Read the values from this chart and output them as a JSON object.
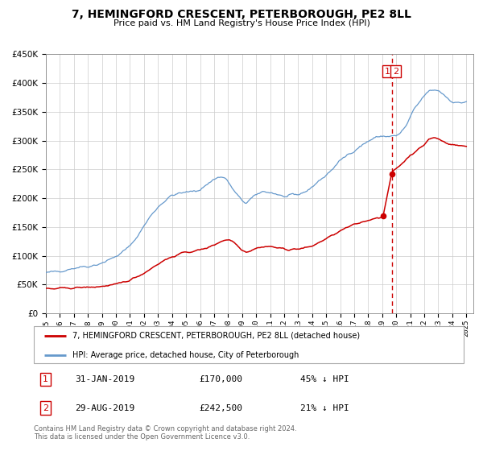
{
  "title": "7, HEMINGFORD CRESCENT, PETERBOROUGH, PE2 8LL",
  "subtitle": "Price paid vs. HM Land Registry's House Price Index (HPI)",
  "legend_line1": "7, HEMINGFORD CRESCENT, PETERBOROUGH, PE2 8LL (detached house)",
  "legend_line2": "HPI: Average price, detached house, City of Peterborough",
  "annotation1_label": "1",
  "annotation1_date": "31-JAN-2019",
  "annotation1_price": "£170,000",
  "annotation1_pct": "45% ↓ HPI",
  "annotation2_label": "2",
  "annotation2_date": "29-AUG-2019",
  "annotation2_price": "£242,500",
  "annotation2_pct": "21% ↓ HPI",
  "footer": "Contains HM Land Registry data © Crown copyright and database right 2024.\nThis data is licensed under the Open Government Licence v3.0.",
  "red_line_color": "#cc0000",
  "blue_line_color": "#6699cc",
  "vline_color": "#cc0000",
  "grid_color": "#cccccc",
  "ylim": [
    0,
    450000
  ],
  "xlim_start": 1995.0,
  "xlim_end": 2025.5,
  "vline_x": 2019.67,
  "point1_x": 2019.08,
  "point1_y": 170000,
  "point2_x": 2019.67,
  "point2_y": 242500,
  "blue_keypoints": [
    [
      1995.0,
      70000
    ],
    [
      1995.5,
      72000
    ],
    [
      1996.0,
      74000
    ],
    [
      1996.5,
      76000
    ],
    [
      1997.0,
      79000
    ],
    [
      1997.5,
      81000
    ],
    [
      1998.0,
      82000
    ],
    [
      1998.5,
      84000
    ],
    [
      1999.0,
      88000
    ],
    [
      1999.5,
      93000
    ],
    [
      2000.0,
      99000
    ],
    [
      2000.5,
      107000
    ],
    [
      2001.0,
      117000
    ],
    [
      2001.5,
      133000
    ],
    [
      2002.0,
      152000
    ],
    [
      2002.5,
      170000
    ],
    [
      2003.0,
      185000
    ],
    [
      2003.5,
      196000
    ],
    [
      2004.0,
      205000
    ],
    [
      2004.5,
      208000
    ],
    [
      2005.0,
      210000
    ],
    [
      2005.5,
      212000
    ],
    [
      2006.0,
      215000
    ],
    [
      2006.5,
      224000
    ],
    [
      2007.0,
      233000
    ],
    [
      2007.3,
      237000
    ],
    [
      2007.8,
      235000
    ],
    [
      2008.0,
      228000
    ],
    [
      2008.5,
      210000
    ],
    [
      2009.0,
      195000
    ],
    [
      2009.3,
      192000
    ],
    [
      2009.6,
      198000
    ],
    [
      2010.0,
      205000
    ],
    [
      2010.3,
      210000
    ],
    [
      2010.6,
      212000
    ],
    [
      2011.0,
      210000
    ],
    [
      2011.5,
      207000
    ],
    [
      2012.0,
      202000
    ],
    [
      2012.5,
      204000
    ],
    [
      2013.0,
      206000
    ],
    [
      2013.5,
      211000
    ],
    [
      2014.0,
      220000
    ],
    [
      2014.5,
      230000
    ],
    [
      2015.0,
      240000
    ],
    [
      2015.5,
      252000
    ],
    [
      2016.0,
      265000
    ],
    [
      2016.5,
      275000
    ],
    [
      2017.0,
      283000
    ],
    [
      2017.5,
      291000
    ],
    [
      2018.0,
      299000
    ],
    [
      2018.5,
      305000
    ],
    [
      2019.0,
      308000
    ],
    [
      2019.5,
      307000
    ],
    [
      2020.0,
      308000
    ],
    [
      2020.3,
      313000
    ],
    [
      2020.7,
      325000
    ],
    [
      2021.0,
      340000
    ],
    [
      2021.3,
      355000
    ],
    [
      2021.7,
      368000
    ],
    [
      2022.0,
      378000
    ],
    [
      2022.3,
      385000
    ],
    [
      2022.7,
      388000
    ],
    [
      2023.0,
      387000
    ],
    [
      2023.3,
      382000
    ],
    [
      2023.7,
      373000
    ],
    [
      2024.0,
      368000
    ],
    [
      2024.3,
      365000
    ],
    [
      2024.7,
      366000
    ],
    [
      2025.0,
      368000
    ]
  ],
  "red_keypoints": [
    [
      1995.0,
      43000
    ],
    [
      1995.5,
      42500
    ],
    [
      1996.0,
      43500
    ],
    [
      1996.5,
      43800
    ],
    [
      1997.0,
      44500
    ],
    [
      1997.5,
      45000
    ],
    [
      1998.0,
      45500
    ],
    [
      1998.5,
      46000
    ],
    [
      1999.0,
      47000
    ],
    [
      1999.5,
      48500
    ],
    [
      2000.0,
      50000
    ],
    [
      2000.5,
      54000
    ],
    [
      2001.0,
      58000
    ],
    [
      2001.5,
      64000
    ],
    [
      2002.0,
      70000
    ],
    [
      2002.5,
      78000
    ],
    [
      2003.0,
      86000
    ],
    [
      2003.5,
      93000
    ],
    [
      2004.0,
      98000
    ],
    [
      2004.5,
      103000
    ],
    [
      2005.0,
      106000
    ],
    [
      2005.5,
      108000
    ],
    [
      2006.0,
      110000
    ],
    [
      2006.5,
      114000
    ],
    [
      2007.0,
      119000
    ],
    [
      2007.3,
      123000
    ],
    [
      2007.7,
      127000
    ],
    [
      2008.0,
      128000
    ],
    [
      2008.3,
      126000
    ],
    [
      2008.7,
      118000
    ],
    [
      2009.0,
      110000
    ],
    [
      2009.3,
      107000
    ],
    [
      2009.6,
      109000
    ],
    [
      2010.0,
      113000
    ],
    [
      2010.3,
      115000
    ],
    [
      2010.6,
      116000
    ],
    [
      2011.0,
      116000
    ],
    [
      2011.3,
      115000
    ],
    [
      2011.7,
      113000
    ],
    [
      2012.0,
      112000
    ],
    [
      2012.3,
      111000
    ],
    [
      2012.7,
      111500
    ],
    [
      2013.0,
      112000
    ],
    [
      2013.3,
      113000
    ],
    [
      2013.7,
      114500
    ],
    [
      2014.0,
      117000
    ],
    [
      2014.5,
      123000
    ],
    [
      2015.0,
      130000
    ],
    [
      2015.5,
      136000
    ],
    [
      2016.0,
      143000
    ],
    [
      2016.5,
      149000
    ],
    [
      2017.0,
      154000
    ],
    [
      2017.5,
      158000
    ],
    [
      2018.0,
      162000
    ],
    [
      2018.5,
      165500
    ],
    [
      2019.0,
      168000
    ],
    [
      2019.08,
      170000
    ],
    [
      2019.67,
      242500
    ],
    [
      2019.8,
      248000
    ],
    [
      2020.0,
      252000
    ],
    [
      2020.5,
      262000
    ],
    [
      2021.0,
      275000
    ],
    [
      2021.5,
      283000
    ],
    [
      2022.0,
      293000
    ],
    [
      2022.3,
      302000
    ],
    [
      2022.7,
      305000
    ],
    [
      2023.0,
      303000
    ],
    [
      2023.3,
      299000
    ],
    [
      2023.7,
      295000
    ],
    [
      2024.0,
      293000
    ],
    [
      2024.5,
      291000
    ],
    [
      2025.0,
      290000
    ]
  ]
}
